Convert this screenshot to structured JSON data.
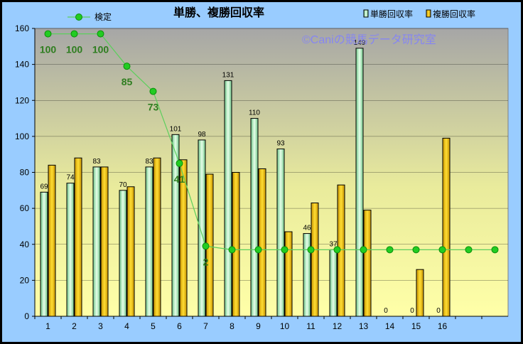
{
  "chart_data": {
    "type": "bar",
    "title": "単勝、複勝回収率",
    "watermark": "©Caniの競馬データ研究室",
    "categories": [
      "1",
      "2",
      "3",
      "4",
      "5",
      "6",
      "7",
      "8",
      "9",
      "10",
      "11",
      "12",
      "13",
      "14",
      "15",
      "16",
      "",
      ""
    ],
    "ylim": [
      0,
      160
    ],
    "yticks": [
      0,
      20,
      40,
      60,
      80,
      100,
      120,
      140,
      160
    ],
    "grid": true,
    "legend_position": "top",
    "series": [
      {
        "name": "単勝回収率",
        "kind": "bar",
        "color": "#b8eec0",
        "values": [
          69,
          74,
          83,
          70,
          83,
          101,
          98,
          131,
          110,
          93,
          46,
          37,
          149,
          0,
          0,
          0,
          null,
          null
        ],
        "labels": [
          "69",
          "74",
          "83",
          "70",
          "83",
          "101",
          "98",
          "131",
          "110",
          "93",
          "46",
          "37",
          "149",
          "0",
          "0",
          "0",
          "",
          ""
        ]
      },
      {
        "name": "複勝回収率",
        "kind": "bar",
        "color": "#f2c200",
        "values": [
          84,
          88,
          83,
          72,
          88,
          87,
          79,
          80,
          82,
          47,
          63,
          73,
          59,
          0,
          26,
          99,
          null,
          null
        ]
      },
      {
        "name": "検定",
        "kind": "line",
        "color": "#22cc22",
        "values": [
          157,
          157,
          157,
          139,
          125,
          85,
          39,
          37,
          37,
          37,
          37,
          37,
          37,
          37,
          37,
          37,
          37,
          37
        ],
        "labels": [
          "100",
          "100",
          "100",
          "85",
          "73",
          "41",
          "2",
          "",
          "",
          "",
          "",
          "",
          "",
          "",
          "",
          "",
          "",
          ""
        ]
      }
    ]
  }
}
